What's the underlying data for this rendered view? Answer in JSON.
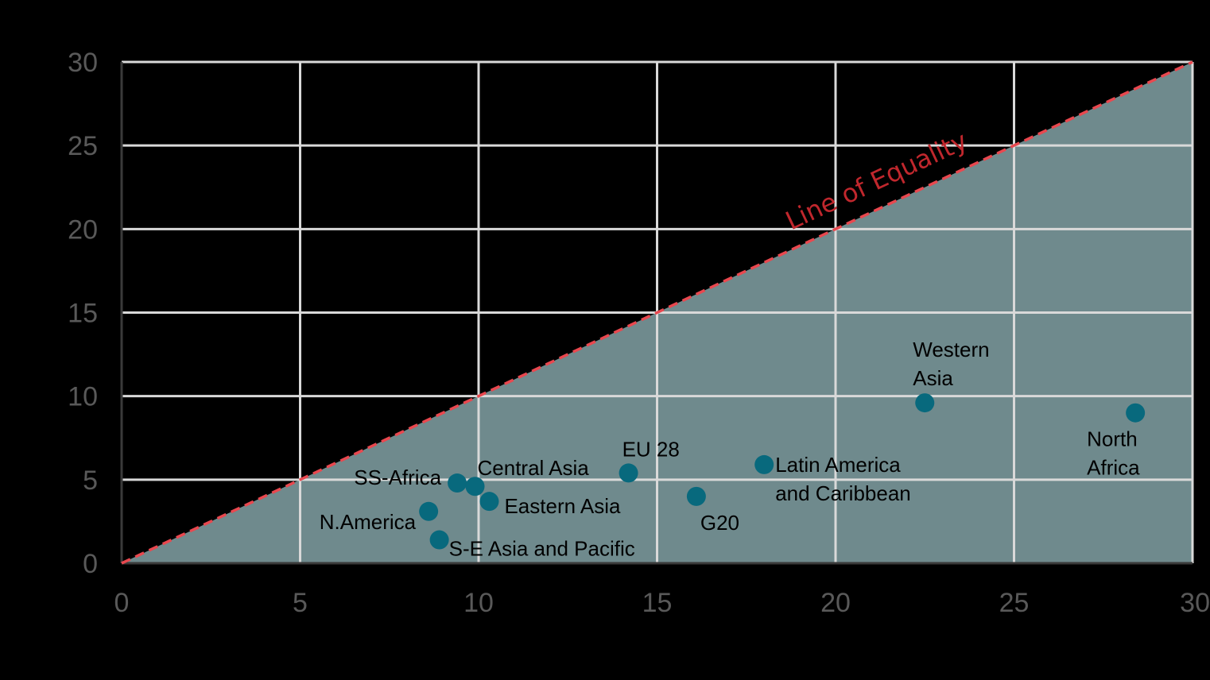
{
  "chart_data": {
    "type": "scatter",
    "title": "",
    "xlabel": "",
    "ylabel": "",
    "xlim": [
      0,
      30
    ],
    "ylim": [
      0,
      30
    ],
    "x_ticks": [
      "0",
      "5",
      "10",
      "15",
      "20",
      "25",
      "30"
    ],
    "y_ticks": [
      "0",
      "5",
      "10",
      "15",
      "20",
      "25",
      "30"
    ],
    "grid": true,
    "colors": {
      "background": "#000000",
      "below_equality_fill": "#6F8A8D",
      "gridline": "#D9D9D9",
      "point": "#08697D",
      "equality_line": "#E8484F",
      "equality_label": "#C0272D",
      "tick_label": "#595959"
    },
    "reference_line": {
      "label": "Line of Equality",
      "from": [
        0,
        0
      ],
      "to": [
        30,
        30
      ],
      "style": "dashed"
    },
    "points": [
      {
        "label": [
          "SS-Africa"
        ],
        "x": 9.4,
        "y": 4.8
      },
      {
        "label": [
          "Central Asia"
        ],
        "x": 9.9,
        "y": 4.6
      },
      {
        "label": [
          "Eastern Asia"
        ],
        "x": 10.3,
        "y": 3.7
      },
      {
        "label": [
          "N.America"
        ],
        "x": 8.6,
        "y": 3.1
      },
      {
        "label": [
          "S-E Asia and Pacific"
        ],
        "x": 8.9,
        "y": 1.4
      },
      {
        "label": [
          "EU 28"
        ],
        "x": 14.2,
        "y": 5.4
      },
      {
        "label": [
          "G20"
        ],
        "x": 16.1,
        "y": 4.0
      },
      {
        "label": [
          "Latin America",
          "and Caribbean"
        ],
        "x": 18.0,
        "y": 5.9
      },
      {
        "label": [
          "Western",
          "Asia"
        ],
        "x": 22.5,
        "y": 9.6
      },
      {
        "label": [
          "North",
          "Africa"
        ],
        "x": 28.4,
        "y": 9.0
      }
    ]
  }
}
